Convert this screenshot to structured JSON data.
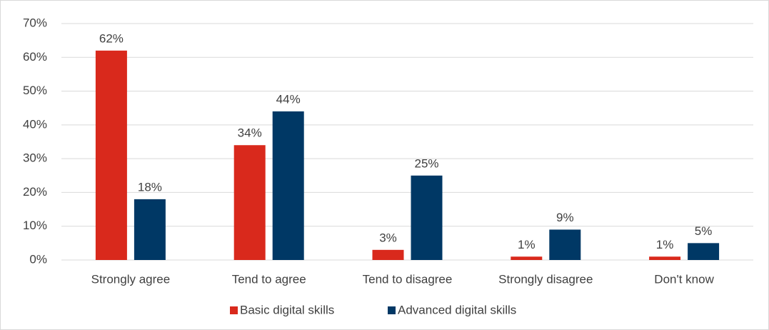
{
  "chart_data": {
    "type": "bar",
    "categories": [
      "Strongly agree",
      "Tend to agree",
      "Tend to disagree",
      "Strongly disagree",
      "Don't know"
    ],
    "series": [
      {
        "name": "Basic digital skills",
        "color": "#d9291c",
        "values": [
          62,
          34,
          3,
          1,
          1
        ],
        "value_labels": [
          "62%",
          "34%",
          "3%",
          "1%",
          "1%"
        ]
      },
      {
        "name": "Advanced digital skills",
        "color": "#003865",
        "values": [
          18,
          44,
          25,
          9,
          5
        ],
        "value_labels": [
          "18%",
          "44%",
          "25%",
          "9%",
          "5%"
        ]
      }
    ],
    "ylim": [
      0,
      70
    ],
    "yticks": [
      {
        "value": 0,
        "label": "0%"
      },
      {
        "value": 10,
        "label": "10%"
      },
      {
        "value": 20,
        "label": "20%"
      },
      {
        "value": 30,
        "label": "30%"
      },
      {
        "value": 40,
        "label": "40%"
      },
      {
        "value": 50,
        "label": "50%"
      },
      {
        "value": 60,
        "label": "60%"
      },
      {
        "value": 70,
        "label": "70%"
      }
    ],
    "grid": true,
    "legend": "bottom"
  }
}
